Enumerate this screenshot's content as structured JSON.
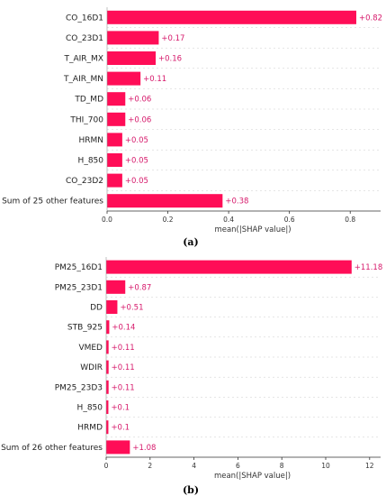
{
  "chart_data": [
    {
      "type": "bar",
      "orientation": "horizontal",
      "panel_label": "(a)",
      "categories": [
        "CO_16D1",
        "CO_23D1",
        "T_AIR_MX",
        "T_AIR_MN",
        "TD_MD",
        "THI_700",
        "HRMN",
        "H_850",
        "CO_23D2",
        "Sum of 25 other features"
      ],
      "values": [
        0.82,
        0.17,
        0.16,
        0.11,
        0.06,
        0.06,
        0.05,
        0.05,
        0.05,
        0.38
      ],
      "value_labels": [
        "+0.82",
        "+0.17",
        "+0.16",
        "+0.11",
        "+0.06",
        "+0.06",
        "+0.05",
        "+0.05",
        "+0.05",
        "+0.38"
      ],
      "xlabel": "mean(|SHAP value|)",
      "xlim": [
        0,
        0.9
      ],
      "xticks": [
        0.0,
        0.2,
        0.4,
        0.6,
        0.8
      ],
      "xtick_labels": [
        "0.0",
        "0.2",
        "0.4",
        "0.6",
        "0.8"
      ],
      "grid": false,
      "bar_color": "#ff0d57"
    },
    {
      "type": "bar",
      "orientation": "horizontal",
      "panel_label": "(b)",
      "categories": [
        "PM25_16D1",
        "PM25_23D1",
        "DD",
        "STB_925",
        "VMED",
        "WDIR",
        "PM25_23D3",
        "H_850",
        "HRMD",
        "Sum of 26 other features"
      ],
      "values": [
        11.18,
        0.87,
        0.51,
        0.14,
        0.11,
        0.11,
        0.11,
        0.1,
        0.1,
        1.08
      ],
      "value_labels": [
        "+11.18",
        "+0.87",
        "+0.51",
        "+0.14",
        "+0.11",
        "+0.11",
        "+0.11",
        "+0.1",
        "+0.1",
        "+1.08"
      ],
      "xlabel": "mean(|SHAP value|)",
      "xlim": [
        0,
        12.5
      ],
      "xticks": [
        0,
        2,
        4,
        6,
        8,
        10,
        12
      ],
      "xtick_labels": [
        "0",
        "2",
        "4",
        "6",
        "8",
        "10",
        "12"
      ],
      "grid": false,
      "bar_color": "#ff0d57"
    }
  ],
  "captions": {
    "a": "(a)",
    "b": "(b)"
  }
}
